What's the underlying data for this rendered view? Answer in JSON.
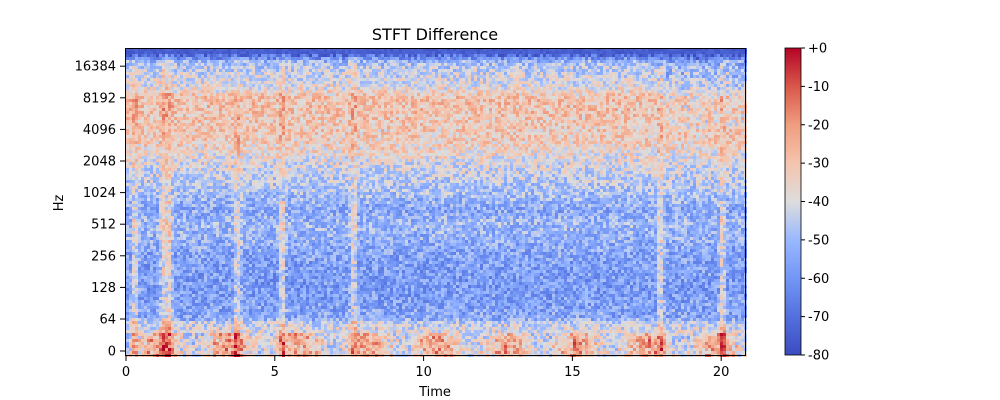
{
  "chart_data": {
    "type": "heatmap",
    "title": "STFT Difference",
    "xlabel": "Time",
    "ylabel": "Hz",
    "xlim": [
      0,
      20.8
    ],
    "x_ticks": [
      0,
      5,
      10,
      15,
      20
    ],
    "y_scale": "log2 (symmetric, linear near 0)",
    "y_ticks": [
      "0",
      "64",
      "128",
      "256",
      "512",
      "1024",
      "2048",
      "4096",
      "8192",
      "16384"
    ],
    "colormap": "coolwarm",
    "colorbar": {
      "range": [
        -80,
        0
      ],
      "ticks": [
        "+0",
        "-10",
        "-20",
        "-30",
        "-40",
        "-50",
        "-60",
        "-70",
        "-80"
      ]
    },
    "low_color": "#3b4cc0",
    "mid_color": "#dddddd",
    "high_color": "#b40426",
    "bands_db": [
      {
        "hz": 22050,
        "db": -78
      },
      {
        "hz": 18000,
        "db": -50
      },
      {
        "hz": 16384,
        "db": -46
      },
      {
        "hz": 10000,
        "db": -38
      },
      {
        "hz": 8192,
        "db": -30
      },
      {
        "hz": 6000,
        "db": -30
      },
      {
        "hz": 4096,
        "db": -32
      },
      {
        "hz": 3000,
        "db": -33
      },
      {
        "hz": 2048,
        "db": -40
      },
      {
        "hz": 1024,
        "db": -48
      },
      {
        "hz": 700,
        "db": -55
      },
      {
        "hz": 512,
        "db": -50
      },
      {
        "hz": 256,
        "db": -56
      },
      {
        "hz": 128,
        "db": -58
      },
      {
        "hz": 64,
        "db": -55
      },
      {
        "hz": 30,
        "db": -45
      },
      {
        "hz": 10,
        "db": -35
      }
    ],
    "transient_times": [
      0.25,
      1.2,
      1.4,
      3.7,
      5.2,
      7.6,
      17.9,
      20.0
    ]
  }
}
